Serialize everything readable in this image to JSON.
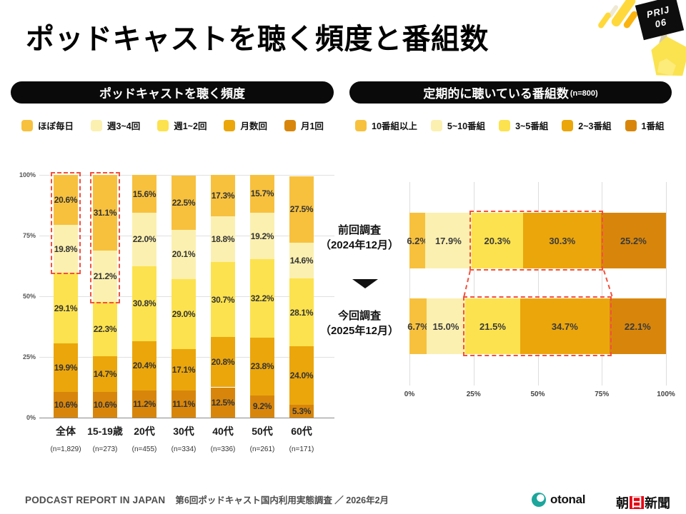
{
  "title": "ポッドキャストを聴く頻度と番組数",
  "badge": {
    "line1": "PRIJ",
    "line2": "06"
  },
  "sections": {
    "left": {
      "header": "ポッドキャストを聴く頻度"
    },
    "right": {
      "header": "定期的に聴いている番組数",
      "header_sub": "(n=800)"
    }
  },
  "footer": {
    "brand": "PODCAST REPORT IN JAPAN",
    "description": "第6回ポッドキャスト国内利用実態調査 ／ 2026年2月",
    "otonal": "otonal",
    "asahi1": "朝",
    "asahi2": "日",
    "asahi3": "新聞"
  },
  "colors": {
    "series": [
      "#F7C13E",
      "#FBF0B0",
      "#FCE24E",
      "#EBA60C",
      "#D8860B"
    ],
    "highlight_red": "#F4503C",
    "pill_black": "#0A0A0A",
    "otonal_teal": "#1CA69C",
    "asahi_red": "#E60012"
  },
  "chart_data": [
    {
      "type": "bar",
      "stacked": true,
      "orientation": "vertical",
      "title": "ポッドキャストを聴く頻度",
      "categories": [
        "全体",
        "15-19歳",
        "20代",
        "30代",
        "40代",
        "50代",
        "60代"
      ],
      "category_n": [
        "(n=1,829)",
        "(n=273)",
        "(n=455)",
        "(n=334)",
        "(n=336)",
        "(n=261)",
        "(n=171)"
      ],
      "series": [
        {
          "name": "ほぼ毎日",
          "color": "#F7C13E",
          "values": [
            20.6,
            31.1,
            15.6,
            22.5,
            17.3,
            15.7,
            27.5
          ]
        },
        {
          "name": "週3~4回",
          "color": "#FBF0B0",
          "values": [
            19.8,
            21.2,
            22.0,
            20.1,
            18.8,
            19.2,
            14.6
          ]
        },
        {
          "name": "週1~2回",
          "color": "#FCE24E",
          "values": [
            29.1,
            22.3,
            30.8,
            29.0,
            30.7,
            32.2,
            28.1
          ]
        },
        {
          "name": "月数回",
          "color": "#EBA60C",
          "values": [
            19.9,
            14.7,
            20.4,
            17.1,
            20.8,
            23.8,
            24.0
          ]
        },
        {
          "name": "月1回",
          "color": "#D8860B",
          "values": [
            10.6,
            10.6,
            11.2,
            11.1,
            12.5,
            9.2,
            5.3
          ]
        }
      ],
      "y_ticks": [
        "0%",
        "25%",
        "50%",
        "75%",
        "100%"
      ],
      "ylim": [
        0,
        100
      ],
      "grid": true,
      "highlights": [
        {
          "category_index": 0,
          "series_span": [
            0,
            1
          ]
        },
        {
          "category_index": 1,
          "series_span": [
            0,
            1
          ]
        }
      ]
    },
    {
      "type": "bar",
      "stacked": true,
      "orientation": "horizontal",
      "title": "定期的に聴いている番組数",
      "n_label": "n=800",
      "categories": [
        "前回調査（2024年12月）",
        "今回調査（2025年12月）"
      ],
      "category_lines": [
        [
          "前回調査",
          "（2024年12月）"
        ],
        [
          "今回調査",
          "（2025年12月）"
        ]
      ],
      "series": [
        {
          "name": "10番組以上",
          "color": "#F7C13E",
          "values": [
            6.2,
            6.7
          ]
        },
        {
          "name": "5~10番組",
          "color": "#FBF0B0",
          "values": [
            17.9,
            15.0
          ]
        },
        {
          "name": "3~5番組",
          "color": "#FCE24E",
          "values": [
            20.3,
            21.5
          ]
        },
        {
          "name": "2~3番組",
          "color": "#EBA60C",
          "values": [
            30.3,
            34.7
          ]
        },
        {
          "name": "1番組",
          "color": "#D8860B",
          "values": [
            25.2,
            22.1
          ]
        }
      ],
      "x_ticks": [
        "0%",
        "25%",
        "50%",
        "75%",
        "100%"
      ],
      "xlim": [
        0,
        100
      ],
      "highlights": [
        {
          "category_index": 0,
          "series_span": [
            2,
            3
          ]
        },
        {
          "category_index": 1,
          "series_span": [
            2,
            3
          ]
        }
      ],
      "highlight_connect": true
    }
  ]
}
